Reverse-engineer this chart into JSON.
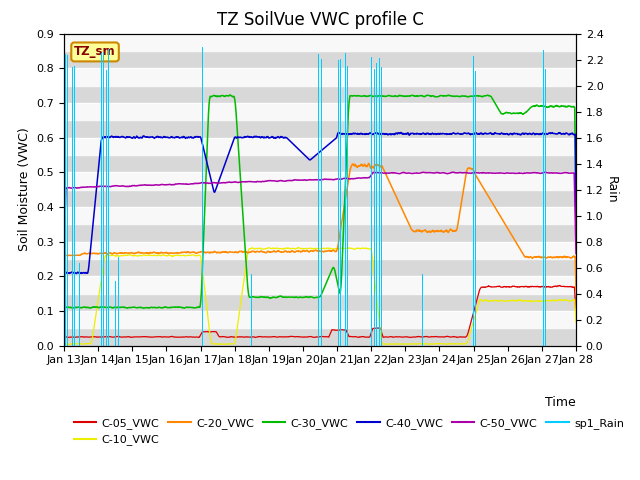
{
  "title": "TZ SoilVue VWC profile C",
  "xlabel": "Time",
  "ylabel_left": "Soil Moisture (VWC)",
  "ylabel_right": "Rain",
  "xlim": [
    0,
    15
  ],
  "ylim_left": [
    0.0,
    0.9
  ],
  "ylim_right": [
    0.0,
    2.4
  ],
  "xtick_labels": [
    "Jan 13",
    "Jan 14",
    "Jan 15",
    "Jan 16",
    "Jan 17",
    "Jan 18",
    "Jan 19",
    "Jan 20",
    "Jan 21",
    "Jan 22",
    "Jan 23",
    "Jan 24",
    "Jan 25",
    "Jan 26",
    "Jan 27",
    "Jan 28"
  ],
  "yticks_left": [
    0.0,
    0.1,
    0.2,
    0.3,
    0.4,
    0.5,
    0.6,
    0.7,
    0.8,
    0.9
  ],
  "yticks_right": [
    0.0,
    0.2,
    0.4,
    0.6,
    0.8,
    1.0,
    1.2,
    1.4,
    1.6,
    1.8,
    2.0,
    2.2,
    2.4
  ],
  "colors": {
    "C05": "#dd0000",
    "C10": "#eeee00",
    "C20": "#ff8800",
    "C30": "#00bb00",
    "C40": "#0000cc",
    "C50": "#aa00aa",
    "Rain": "#00ccff"
  },
  "legend_labels": [
    "C-05_VWC",
    "C-10_VWC",
    "C-20_VWC",
    "C-30_VWC",
    "C-40_VWC",
    "C-50_VWC",
    "sp1_Rain"
  ],
  "annotation_text": "TZ_sm",
  "annotation_fx": 0.02,
  "annotation_fy": 0.93,
  "title_fontsize": 12,
  "label_fontsize": 9,
  "tick_fontsize": 8,
  "legend_fontsize": 8,
  "bg_gray": "#d8d8d8",
  "bg_white": "#f8f8f8"
}
